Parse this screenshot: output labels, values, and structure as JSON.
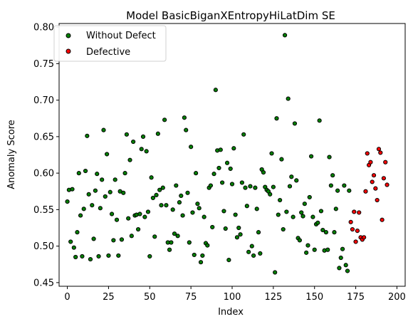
{
  "chart_data": {
    "type": "scatter",
    "title": "Model BasicBiganXEntropyHiLatDim SE",
    "xlabel": "Index",
    "ylabel": "Anomaly Score",
    "xlim": [
      -5,
      205
    ],
    "ylim": [
      0.445,
      0.805
    ],
    "xticks": [
      0,
      25,
      50,
      75,
      100,
      125,
      150,
      175,
      200
    ],
    "yticks": [
      0.45,
      0.5,
      0.55,
      0.6,
      0.65,
      0.7,
      0.75,
      0.8
    ],
    "ytick_labels": [
      "0.45",
      "0.50",
      "0.55",
      "0.60",
      "0.65",
      "0.70",
      "0.75",
      "0.80"
    ],
    "grid": false,
    "legend_position": "top-left",
    "series": [
      {
        "name": "Without Defect",
        "color": "#008000",
        "edgecolor": "#000000",
        "points": [
          [
            0,
            0.561
          ],
          [
            1,
            0.577
          ],
          [
            2,
            0.506
          ],
          [
            3,
            0.578
          ],
          [
            4,
            0.498
          ],
          [
            5,
            0.485
          ],
          [
            6,
            0.519
          ],
          [
            7,
            0.6
          ],
          [
            8,
            0.542
          ],
          [
            9,
            0.486
          ],
          [
            10,
            0.551
          ],
          [
            11,
            0.603
          ],
          [
            12,
            0.651
          ],
          [
            13,
            0.571
          ],
          [
            14,
            0.482
          ],
          [
            15,
            0.556
          ],
          [
            16,
            0.51
          ],
          [
            17,
            0.576
          ],
          [
            18,
            0.599
          ],
          [
            19,
            0.486
          ],
          [
            20,
            0.552
          ],
          [
            21,
            0.591
          ],
          [
            22,
            0.659
          ],
          [
            23,
            0.568
          ],
          [
            24,
            0.626
          ],
          [
            25,
            0.487
          ],
          [
            26,
            0.574
          ],
          [
            27,
            0.544
          ],
          [
            28,
            0.508
          ],
          [
            29,
            0.591
          ],
          [
            30,
            0.536
          ],
          [
            31,
            0.487
          ],
          [
            32,
            0.575
          ],
          [
            33,
            0.509
          ],
          [
            34,
            0.573
          ],
          [
            35,
            0.6
          ],
          [
            36,
            0.653
          ],
          [
            37,
            0.538
          ],
          [
            38,
            0.618
          ],
          [
            39,
            0.514
          ],
          [
            40,
            0.643
          ],
          [
            41,
            0.542
          ],
          [
            42,
            0.543
          ],
          [
            43,
            0.523
          ],
          [
            44,
            0.544
          ],
          [
            45,
            0.633
          ],
          [
            46,
            0.65
          ],
          [
            47,
            0.54
          ],
          [
            48,
            0.63
          ],
          [
            49,
            0.547
          ],
          [
            50,
            0.486
          ],
          [
            51,
            0.594
          ],
          [
            52,
            0.566
          ],
          [
            53,
            0.513
          ],
          [
            54,
            0.57
          ],
          [
            55,
            0.654
          ],
          [
            56,
            0.577
          ],
          [
            57,
            0.556
          ],
          [
            58,
            0.58
          ],
          [
            59,
            0.673
          ],
          [
            60,
            0.556
          ],
          [
            61,
            0.505
          ],
          [
            62,
            0.495
          ],
          [
            63,
            0.505
          ],
          [
            64,
            0.55
          ],
          [
            65,
            0.517
          ],
          [
            66,
            0.583
          ],
          [
            67,
            0.514
          ],
          [
            68,
            0.56
          ],
          [
            69,
            0.569
          ],
          [
            70,
            0.542
          ],
          [
            71,
            0.676
          ],
          [
            72,
            0.659
          ],
          [
            73,
            0.573
          ],
          [
            74,
            0.505
          ],
          [
            75,
            0.636
          ],
          [
            76,
            0.546
          ],
          [
            77,
            0.488
          ],
          [
            78,
            0.6
          ],
          [
            79,
            0.558
          ],
          [
            80,
            0.552
          ],
          [
            81,
            0.478
          ],
          [
            82,
            0.487
          ],
          [
            83,
            0.54
          ],
          [
            84,
            0.504
          ],
          [
            85,
            0.501
          ],
          [
            86,
            0.58
          ],
          [
            87,
            0.583
          ],
          [
            88,
            0.526
          ],
          [
            89,
            0.599
          ],
          [
            90,
            0.714
          ],
          [
            91,
            0.631
          ],
          [
            92,
            0.607
          ],
          [
            93,
            0.632
          ],
          [
            94,
            0.587
          ],
          [
            95,
            0.548
          ],
          [
            96,
            0.524
          ],
          [
            97,
            0.614
          ],
          [
            98,
            0.481
          ],
          [
            99,
            0.606
          ],
          [
            100,
            0.585
          ],
          [
            101,
            0.634
          ],
          [
            102,
            0.543
          ],
          [
            103,
            0.512
          ],
          [
            104,
            0.525
          ],
          [
            105,
            0.516
          ],
          [
            106,
            0.587
          ],
          [
            107,
            0.653
          ],
          [
            108,
            0.58
          ],
          [
            109,
            0.555
          ],
          [
            110,
            0.492
          ],
          [
            111,
            0.582
          ],
          [
            112,
            0.5
          ],
          [
            113,
            0.487
          ],
          [
            114,
            0.58
          ],
          [
            115,
            0.551
          ],
          [
            116,
            0.519
          ],
          [
            117,
            0.49
          ],
          [
            118,
            0.605
          ],
          [
            119,
            0.601
          ],
          [
            120,
            0.581
          ],
          [
            121,
            0.577
          ],
          [
            122,
            0.575
          ],
          [
            123,
            0.571
          ],
          [
            124,
            0.627
          ],
          [
            125,
            0.581
          ],
          [
            126,
            0.464
          ],
          [
            127,
            0.675
          ],
          [
            128,
            0.543
          ],
          [
            129,
            0.563
          ],
          [
            130,
            0.619
          ],
          [
            131,
            0.523
          ],
          [
            132,
            0.789
          ],
          [
            133,
            0.547
          ],
          [
            134,
            0.702
          ],
          [
            135,
            0.582
          ],
          [
            136,
            0.595
          ],
          [
            137,
            0.54
          ],
          [
            138,
            0.668
          ],
          [
            139,
            0.59
          ],
          [
            140,
            0.511
          ],
          [
            141,
            0.508
          ],
          [
            142,
            0.546
          ],
          [
            143,
            0.541
          ],
          [
            144,
            0.558
          ],
          [
            145,
            0.491
          ],
          [
            146,
            0.501
          ],
          [
            147,
            0.567
          ],
          [
            148,
            0.623
          ],
          [
            149,
            0.54
          ],
          [
            150,
            0.495
          ],
          [
            151,
            0.53
          ],
          [
            152,
            0.532
          ],
          [
            153,
            0.672
          ],
          [
            154,
            0.548
          ],
          [
            155,
            0.522
          ],
          [
            156,
            0.494
          ],
          [
            157,
            0.519
          ],
          [
            158,
            0.495
          ],
          [
            159,
            0.622
          ],
          [
            160,
            0.583
          ],
          [
            161,
            0.597
          ],
          [
            162,
            0.519
          ],
          [
            163,
            0.551
          ],
          [
            164,
            0.576
          ],
          [
            165,
            0.47
          ],
          [
            166,
            0.484
          ],
          [
            167,
            0.496
          ],
          [
            168,
            0.583
          ],
          [
            169,
            0.474
          ],
          [
            170,
            0.466
          ],
          [
            171,
            0.576
          ]
        ]
      },
      {
        "name": "Defective",
        "color": "#ff0000",
        "edgecolor": "#000000",
        "points": [
          [
            172,
            0.533
          ],
          [
            173,
            0.523
          ],
          [
            174,
            0.547
          ],
          [
            175,
            0.506
          ],
          [
            176,
            0.521
          ],
          [
            177,
            0.546
          ],
          [
            178,
            0.512
          ],
          [
            179,
            0.509
          ],
          [
            180,
            0.512
          ],
          [
            181,
            0.575
          ],
          [
            182,
            0.627
          ],
          [
            183,
            0.611
          ],
          [
            184,
            0.615
          ],
          [
            185,
            0.588
          ],
          [
            186,
            0.597
          ],
          [
            187,
            0.579
          ],
          [
            188,
            0.563
          ],
          [
            189,
            0.633
          ],
          [
            190,
            0.628
          ],
          [
            191,
            0.536
          ],
          [
            192,
            0.593
          ],
          [
            193,
            0.615
          ],
          [
            194,
            0.584
          ]
        ]
      }
    ]
  }
}
